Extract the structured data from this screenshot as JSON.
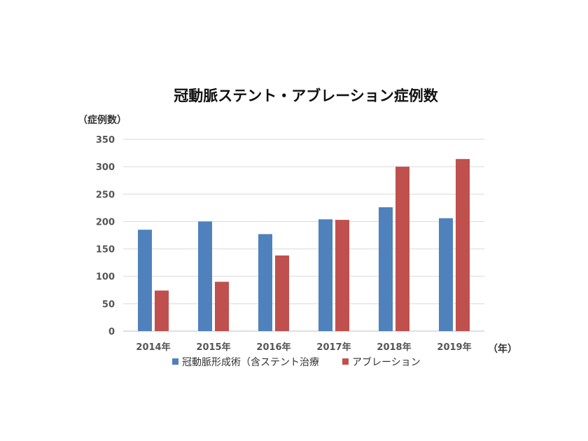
{
  "chart_data": {
    "type": "bar",
    "title": "冠動脈ステント・アブレーション症例数",
    "ylabel": "（症例数）",
    "xlabel": "（年）",
    "ylim": [
      0,
      350
    ],
    "yticks": [
      0,
      50,
      100,
      150,
      200,
      250,
      300,
      350
    ],
    "categories": [
      "2014年",
      "2015年",
      "2016年",
      "2017年",
      "2018年",
      "2019年"
    ],
    "series": [
      {
        "name": "冠動脈形成術（含ステント治療",
        "color": "#4f81bd",
        "values": [
          185,
          200,
          177,
          204,
          226,
          206
        ]
      },
      {
        "name": "アブレーション",
        "color": "#c0504d",
        "values": [
          74,
          90,
          138,
          203,
          300,
          314
        ]
      }
    ],
    "grid": true,
    "legend_position": "bottom"
  }
}
